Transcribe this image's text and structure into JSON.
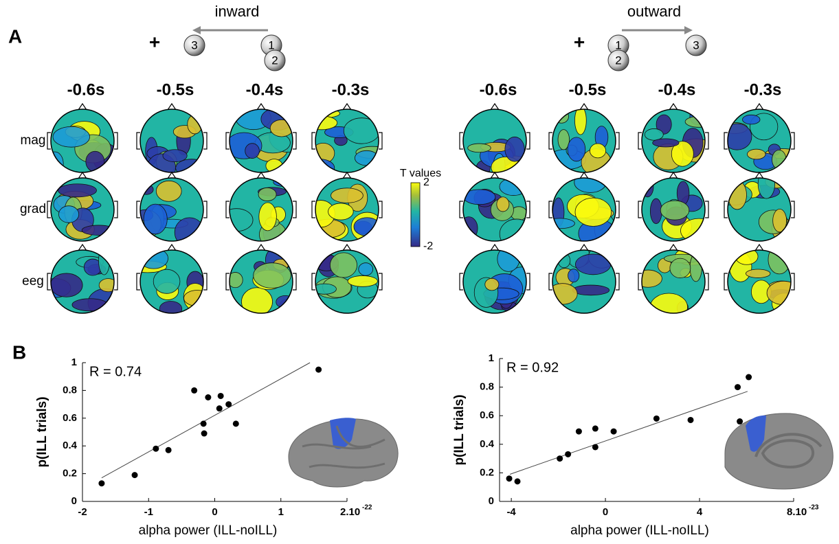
{
  "panels": {
    "a": "A",
    "b": "B"
  },
  "conditions": [
    {
      "label": "inward",
      "plus": "+",
      "nodes": [
        "3",
        "1",
        "2"
      ]
    },
    {
      "label": "outward",
      "plus": "+",
      "nodes": [
        "1",
        "2",
        "3"
      ]
    }
  ],
  "times": [
    "-0.6s",
    "-0.5s",
    "-0.4s",
    "-0.3s"
  ],
  "rows": [
    "mag",
    "grad",
    "eeg"
  ],
  "colorbar": {
    "title": "T values",
    "ticks": [
      2,
      -2
    ]
  },
  "chart_data": [
    {
      "type": "scatter",
      "annotation": "R = 0.74",
      "x_label": "alpha power (ILL-noILL)",
      "y_label": "p(ILL trials)",
      "x": [
        -1.71,
        -1.21,
        -0.89,
        -0.7,
        -0.31,
        -0.1,
        0.09,
        0.21,
        0.07,
        -0.17,
        -0.16,
        0.32,
        1.57
      ],
      "values": [
        0.13,
        0.19,
        0.38,
        0.37,
        0.8,
        0.75,
        0.76,
        0.7,
        0.67,
        0.56,
        0.49,
        0.56,
        0.95
      ],
      "color": "#000000",
      "fit": {
        "x": [
          -1.71,
          1.44
        ],
        "values": [
          0.17,
          1.0
        ]
      },
      "xlim": [
        -2,
        2
      ],
      "ylim": [
        0,
        1
      ],
      "xticks": [
        -2,
        -1,
        0,
        1,
        {
          "value": 2,
          "label": "2.10"
        }
      ],
      "x_exponent": "-22",
      "yticks": [
        0,
        0.2,
        0.4,
        0.6,
        0.8,
        1
      ]
    },
    {
      "type": "scatter",
      "annotation": "R = 0.92",
      "x_label": "alpha power (ILL-noILL)",
      "y_label": "p(ILL trials)",
      "x": [
        -4.09,
        -3.74,
        -1.94,
        -1.59,
        -1.13,
        -0.43,
        -0.43,
        0.35,
        2.17,
        3.62,
        5.62,
        5.71,
        6.09
      ],
      "values": [
        0.16,
        0.14,
        0.3,
        0.33,
        0.49,
        0.51,
        0.38,
        0.49,
        0.58,
        0.57,
        0.8,
        0.56,
        0.87
      ],
      "color": "#000000",
      "fit": {
        "x": [
          -4.06,
          6.04
        ],
        "values": [
          0.19,
          0.77
        ]
      },
      "xlim": [
        -4.5,
        8
      ],
      "ylim": [
        0,
        1
      ],
      "xticks": [
        -4,
        0,
        4,
        {
          "value": 8,
          "label": "8.10"
        }
      ],
      "x_exponent": "-23",
      "yticks": [
        0,
        0.2,
        0.4,
        0.6,
        0.8,
        1
      ]
    }
  ]
}
